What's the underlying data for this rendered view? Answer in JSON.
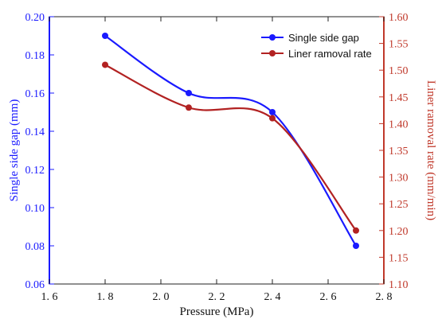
{
  "chart_data": {
    "type": "line",
    "title": "",
    "xlabel": "Pressure (MPa)",
    "ylabel_left": "Single side gap (mm)",
    "ylabel_right": "Liner ramoval rate (mm/min)",
    "xlim": [
      1.6,
      2.8
    ],
    "ylim_left": [
      0.06,
      0.2
    ],
    "ylim_right": [
      1.1,
      1.6
    ],
    "x_ticks": [
      "1. 6",
      "1. 8",
      "2. 0",
      "2. 2",
      "2. 4",
      "2. 6",
      "2. 8"
    ],
    "y_left_ticks": [
      "0.06",
      "0.08",
      "0.10",
      "0.12",
      "0.14",
      "0.16",
      "0.18",
      "0.20"
    ],
    "y_right_ticks": [
      "1.10",
      "1.15",
      "1.20",
      "1.25",
      "1.30",
      "1.35",
      "1.40",
      "1.45",
      "1.50",
      "1.55",
      "1.60"
    ],
    "legend_position": "top-right",
    "grid": false,
    "colors": {
      "left_axis": "#1a1aff",
      "right_axis": "#c0392b",
      "series_blue": "#1a1aff",
      "series_red": "#b22222"
    },
    "series": [
      {
        "name": "Single side gap",
        "axis": "left",
        "color": "#1a1aff",
        "x": [
          1.8,
          2.1,
          2.4,
          2.7
        ],
        "y": [
          0.19,
          0.16,
          0.15,
          0.08
        ]
      },
      {
        "name": "Liner ramoval rate",
        "axis": "right",
        "color": "#b22222",
        "x": [
          1.8,
          2.1,
          2.4,
          2.7
        ],
        "y": [
          1.51,
          1.43,
          1.41,
          1.2
        ]
      }
    ]
  }
}
